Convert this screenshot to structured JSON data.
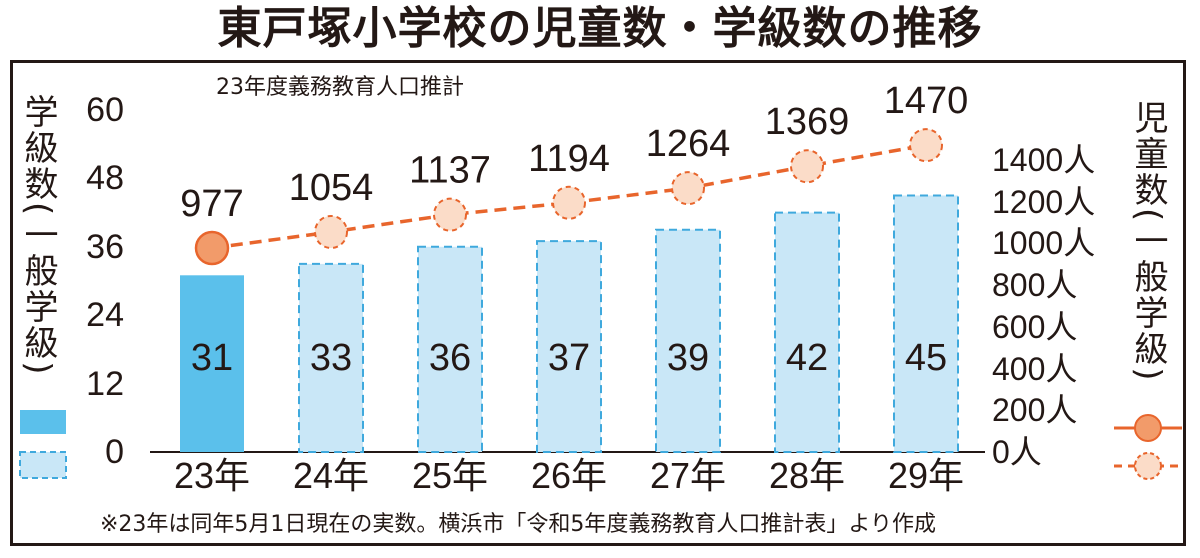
{
  "title": "東戸塚小学校の児童数・学級数の推移",
  "subtitle": "23年度義務教育人口推計",
  "footnote": "※23年は同年5月1日現在の実数。横浜市「令和5年度義務教育人口推計表」より作成",
  "colors": {
    "bar_actual": "#5bc0eb",
    "bar_estimate": "#c9e7f7",
    "bar_estimate_border": "#3fa9dd",
    "line": "#e8652c",
    "marker_actual": "#f29b6a",
    "marker_estimate": "#fbdcc8"
  },
  "chart_data": {
    "type": "bar",
    "categories": [
      "23年",
      "24年",
      "25年",
      "26年",
      "27年",
      "28年",
      "29年"
    ],
    "left_axis": {
      "label": "学級数(一般学級)",
      "ticks": [
        "60",
        "48",
        "36",
        "24",
        "12",
        "0"
      ],
      "ylim": [
        0,
        60
      ]
    },
    "right_axis": {
      "label": "児童数(一般学級)",
      "ticks": [
        "1400人",
        "1200人",
        "1000人",
        "800人",
        "600人",
        "400人",
        "200人",
        "0人"
      ],
      "ylim": [
        0,
        1600
      ]
    },
    "series": [
      {
        "type": "bar",
        "axis": "left",
        "values": [
          31,
          33,
          36,
          37,
          39,
          42,
          45
        ],
        "value_labels": [
          "31",
          "33",
          "36",
          "37",
          "39",
          "42",
          "45"
        ]
      },
      {
        "type": "line",
        "axis": "right",
        "values": [
          977,
          1054,
          1137,
          1194,
          1264,
          1369,
          1470
        ],
        "value_labels": [
          "977",
          "1054",
          "1137",
          "1194",
          "1264",
          "1369",
          "1470"
        ]
      }
    ],
    "actual_count": 1,
    "legend_position": "left-bottom and right-bottom"
  }
}
